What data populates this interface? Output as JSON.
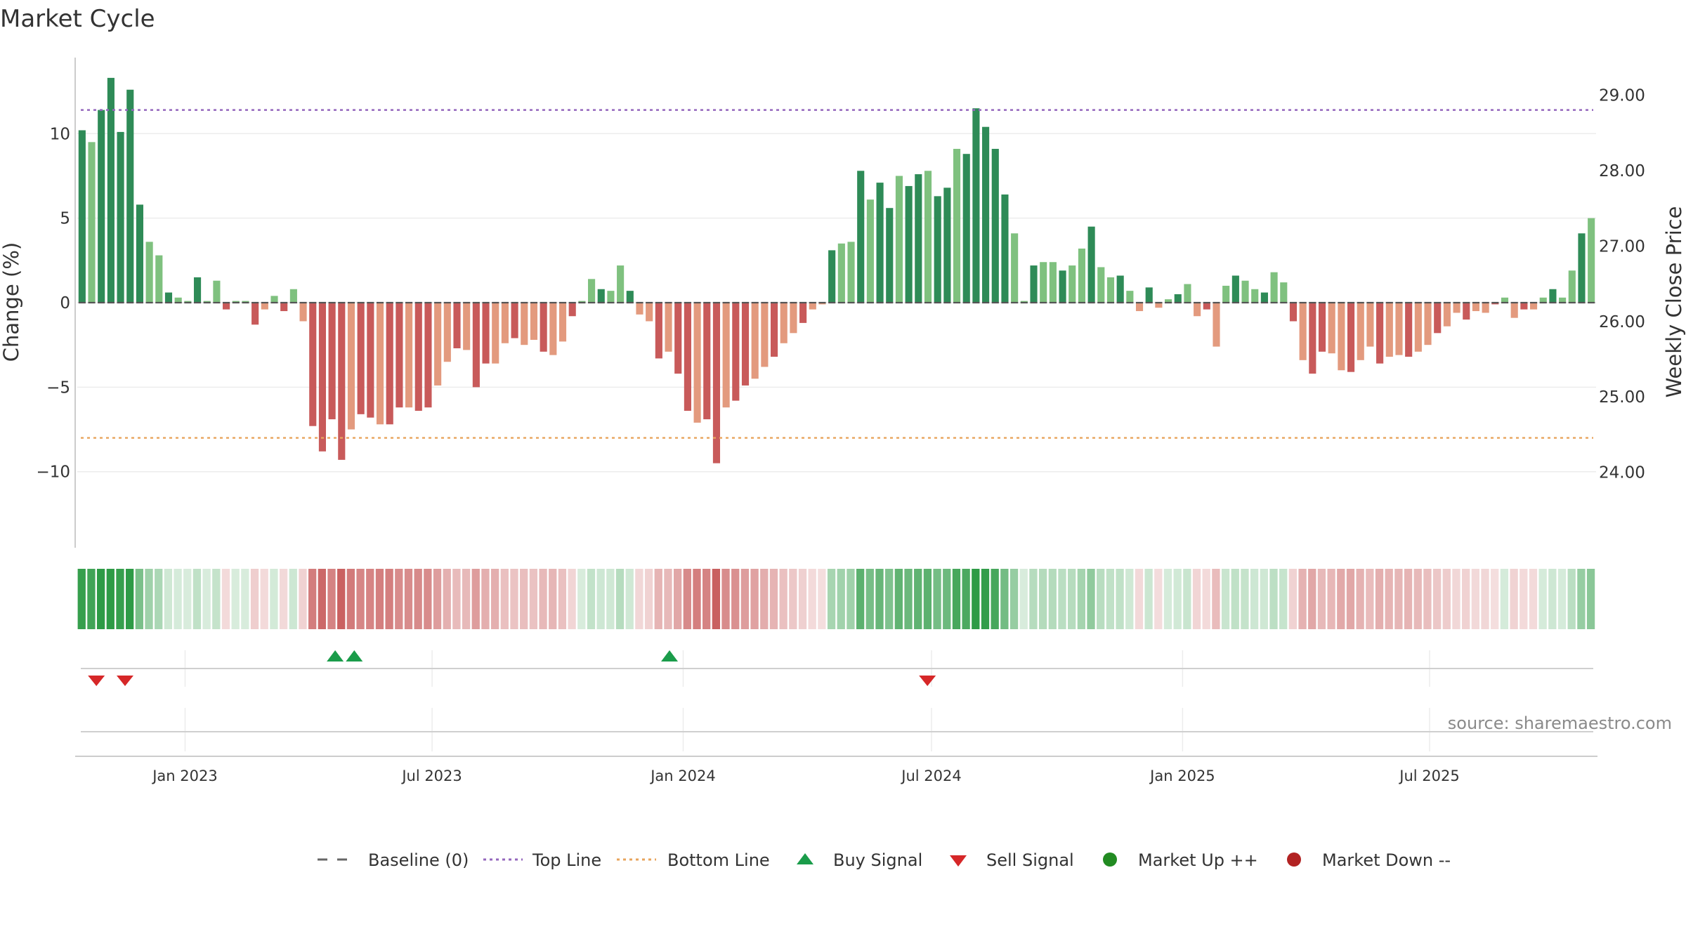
{
  "title": "Market Cycle",
  "source": "source: sharemaestro.com",
  "colors": {
    "up_strong": "#2e8b57",
    "up_light": "#7fc17f",
    "down_strong": "#c85a5a",
    "down_light": "#e39a7e",
    "top_line": "#9467bd",
    "bottom_line": "#e8a45c",
    "buy": "#1a9c4a",
    "sell": "#d62728",
    "baseline": "#555555"
  },
  "legend": {
    "baseline": "Baseline (0)",
    "top_line": "Top Line",
    "bottom_line": "Bottom Line",
    "buy": "Buy Signal",
    "sell": "Sell Signal",
    "market_up": "Market Up ++",
    "market_down": "Market Down --"
  },
  "chart_data": {
    "type": "bar",
    "title": "Market Cycle",
    "ylabel": "Change (%)",
    "y2label": "Weekly Close Price",
    "ylim": [
      -14.5,
      14.5
    ],
    "y2lim": [
      23.0,
      29.5
    ],
    "yticks": [
      {
        "value": 10,
        "label": "10"
      },
      {
        "value": 5,
        "label": "5"
      },
      {
        "value": 0,
        "label": "0"
      },
      {
        "value": -5,
        "label": "−5"
      },
      {
        "value": -10,
        "label": "−10"
      }
    ],
    "y2ticks": [
      {
        "value": 29.0,
        "label": "29.00"
      },
      {
        "value": 28.0,
        "label": "28.00"
      },
      {
        "value": 27.0,
        "label": "27.00"
      },
      {
        "value": 26.0,
        "label": "26.00"
      },
      {
        "value": 25.0,
        "label": "25.00"
      },
      {
        "value": 24.0,
        "label": "24.00"
      }
    ],
    "x_start": "2022-10-14",
    "x_end": "2025-10-31",
    "xticks": [
      {
        "date": "2023-01-01",
        "label": "Jan 2023"
      },
      {
        "date": "2023-07-01",
        "label": "Jul 2023"
      },
      {
        "date": "2024-01-01",
        "label": "Jan 2024"
      },
      {
        "date": "2024-07-01",
        "label": "Jul 2024"
      },
      {
        "date": "2025-01-01",
        "label": "Jan 2025"
      },
      {
        "date": "2025-07-01",
        "label": "Jul 2025"
      }
    ],
    "top_line": 11.4,
    "bottom_line": -8.0,
    "series": [
      {
        "name": "Change (%)",
        "values": [
          10.2,
          9.5,
          11.4,
          13.3,
          10.1,
          12.6,
          5.8,
          3.6,
          2.8,
          0.6,
          0.3,
          0.1,
          1.5,
          0.1,
          1.3,
          -0.4,
          0.1,
          0.1,
          -1.3,
          -0.4,
          0.4,
          -0.5,
          0.8,
          -1.1,
          -7.3,
          -8.8,
          -6.9,
          -9.3,
          -7.5,
          -6.6,
          -6.8,
          -7.2,
          -7.2,
          -6.2,
          -6.2,
          -6.4,
          -6.2,
          -4.9,
          -3.5,
          -2.7,
          -2.8,
          -5.0,
          -3.6,
          -3.6,
          -2.4,
          -2.1,
          -2.5,
          -2.2,
          -2.9,
          -3.1,
          -2.3,
          -0.8,
          0.1,
          1.4,
          0.8,
          0.7,
          2.2,
          0.7,
          -0.7,
          -1.1,
          -3.3,
          -2.9,
          -4.2,
          -6.4,
          -7.1,
          -6.9,
          -9.5,
          -6.2,
          -5.8,
          -4.9,
          -4.5,
          -3.8,
          -3.2,
          -2.4,
          -1.8,
          -1.2,
          -0.4,
          -0.1,
          3.1,
          3.5,
          3.6,
          7.8,
          6.1,
          7.1,
          5.6,
          7.5,
          6.9,
          7.6,
          7.8,
          6.3,
          6.8,
          9.1,
          8.8,
          11.5,
          10.4,
          9.1,
          6.4,
          4.1,
          0.1,
          2.2,
          2.4,
          2.4,
          1.9,
          2.2,
          3.2,
          4.5,
          2.1,
          1.5,
          1.6,
          0.7,
          -0.5,
          0.9,
          -0.3,
          0.2,
          0.5,
          1.1,
          -0.8,
          -0.4,
          -2.6,
          1.0,
          1.6,
          1.3,
          0.8,
          0.6,
          1.8,
          1.2,
          -1.1,
          -3.4,
          -4.2,
          -2.9,
          -3.0,
          -4.0,
          -4.1,
          -3.4,
          -2.6,
          -3.6,
          -3.2,
          -3.1,
          -3.2,
          -2.9,
          -2.5,
          -1.8,
          -1.4,
          -0.6,
          -1.0,
          -0.5,
          -0.6,
          -0.1,
          0.3,
          -0.9,
          -0.4,
          -0.4,
          0.3,
          0.8,
          0.3,
          1.9,
          4.1,
          5.0
        ]
      }
    ],
    "buy_signals": [
      "2023-04-21",
      "2023-05-05",
      "2023-12-22"
    ],
    "sell_signals": [
      "2022-10-28",
      "2022-11-18",
      "2024-06-28"
    ]
  }
}
